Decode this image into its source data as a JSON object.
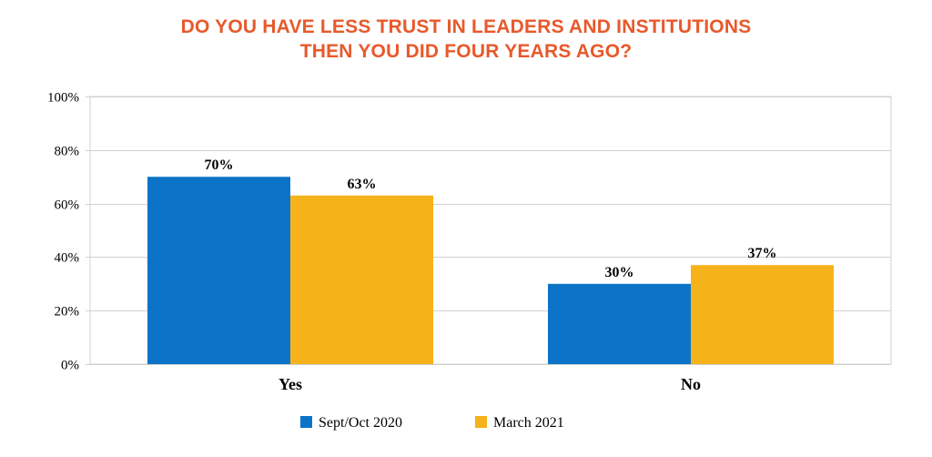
{
  "chart_data": {
    "type": "bar",
    "title_lines": [
      "DO YOU HAVE LESS TRUST IN LEADERS AND INSTITUTIONS",
      "THEN YOU DID FOUR YEARS AGO?"
    ],
    "categories": [
      "Yes",
      "No"
    ],
    "series": [
      {
        "name": "Sept/Oct 2020",
        "values": [
          70,
          30
        ],
        "color": "#0b74c9"
      },
      {
        "name": "March 2021",
        "values": [
          63,
          37
        ],
        "color": "#f6b21b"
      }
    ],
    "value_labels": [
      [
        "70%",
        "30%"
      ],
      [
        "63%",
        "37%"
      ]
    ],
    "ylim": [
      0,
      100
    ],
    "y_ticks": [
      0,
      20,
      40,
      60,
      80,
      100
    ],
    "y_tick_labels": [
      "0%",
      "20%",
      "40%",
      "60%",
      "80%",
      "100%"
    ],
    "grid": true,
    "legend": "bottom"
  },
  "colors": {
    "title": "#e8592b",
    "grid": "#d0d0d0",
    "text": "#000000"
  }
}
